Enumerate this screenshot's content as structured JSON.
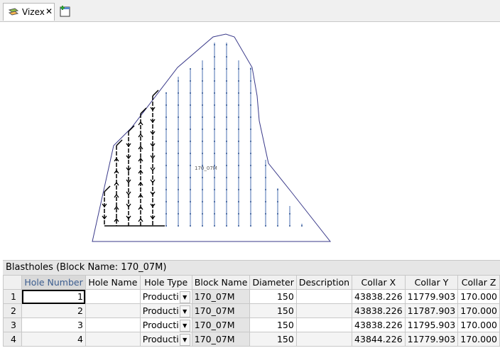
{
  "tabs": {
    "active": "Vizex"
  },
  "viewport": {
    "label": "170_07M"
  },
  "panel": {
    "title": "Blastholes (Block Name: 170_07M)"
  },
  "table": {
    "columns": [
      "Hole Number",
      "Hole Name",
      "Hole Type",
      "Block Name",
      "Diameter",
      "Description",
      "Collar X",
      "Collar Y",
      "Collar Z"
    ],
    "rows": [
      {
        "index": 1,
        "hole_number": 1,
        "hole_type": "Producti",
        "block_name": "170_07M",
        "diameter": 150,
        "collar_x": "43838.226",
        "collar_y": "11779.903",
        "collar_z": "170.000"
      },
      {
        "index": 2,
        "hole_number": 2,
        "hole_type": "Producti",
        "block_name": "170_07M",
        "diameter": 150,
        "collar_x": "43838.226",
        "collar_y": "11787.903",
        "collar_z": "170.000"
      },
      {
        "index": 3,
        "hole_number": 3,
        "hole_type": "Producti",
        "block_name": "170_07M",
        "diameter": 150,
        "collar_x": "43838.226",
        "collar_y": "11795.903",
        "collar_z": "170.000"
      },
      {
        "index": 4,
        "hole_number": 4,
        "hole_type": "Producti",
        "block_name": "170_07M",
        "diameter": 150,
        "collar_x": "43844.226",
        "collar_y": "11779.903",
        "collar_z": "170.000"
      }
    ]
  }
}
